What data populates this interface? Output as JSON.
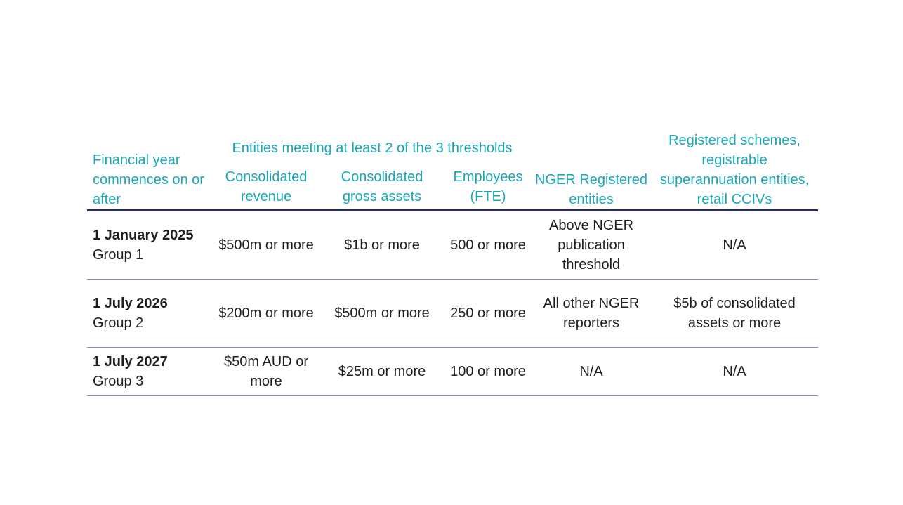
{
  "table": {
    "headers": {
      "financial_year": "Financial year commences on or after",
      "thresholds_group": "Entities meeting at least 2 of the 3 thresholds",
      "consolidated_revenue": "Consolidated revenue",
      "consolidated_gross_assets": "Consolidated gross assets",
      "employees": "Employees (FTE)",
      "nger": "NGER Registered entities",
      "registered_schemes": "Registered schemes, registrable superannuation entities, retail CCIVs"
    },
    "rows": [
      {
        "date": "1 January 2025",
        "group": "Group 1",
        "revenue": "$500m or more",
        "assets": "$1b or more",
        "employees": "500 or more",
        "nger": "Above NGER publication threshold",
        "schemes": "N/A"
      },
      {
        "date": "1 July 2026",
        "group": "Group 2",
        "revenue": "$200m or more",
        "assets": "$500m or more",
        "employees": "250 or more",
        "nger": "All other NGER reporters",
        "schemes": "$5b of consolidated assets or more"
      },
      {
        "date": "1 July 2027",
        "group": "Group 3",
        "revenue": "$50m AUD or more",
        "assets": "$25m or more",
        "employees": "100 or more",
        "nger": "N/A",
        "schemes": "N/A"
      }
    ]
  },
  "colors": {
    "header_text": "#1aa7b8",
    "header_rule": "#2a2a5a",
    "row_rule": "#8a86b5"
  }
}
